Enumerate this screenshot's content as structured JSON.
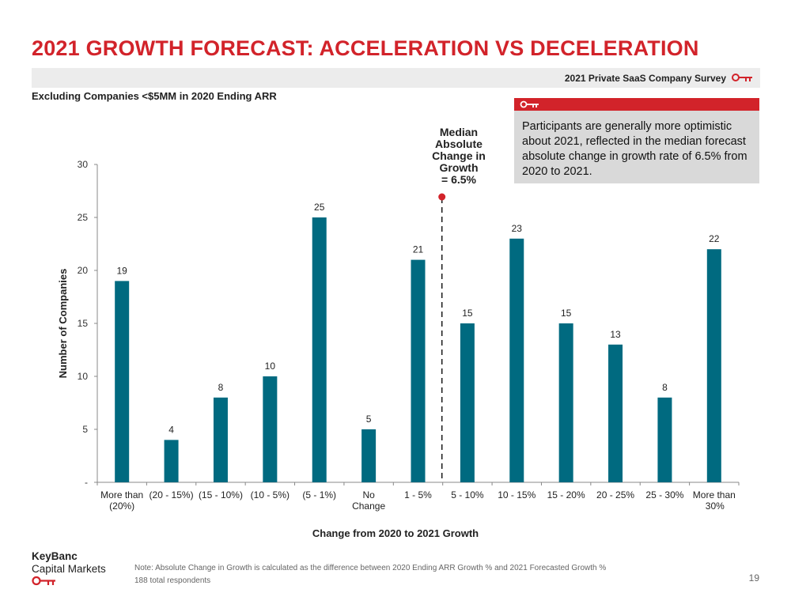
{
  "header": {
    "title": "2021 GROWTH FORECAST: ACCELERATION VS DECELERATION",
    "survey_label": "2021 Private SaaS Company Survey",
    "subtitle": "Excluding Companies <$5MM in 2020 Ending ARR"
  },
  "callout": {
    "text": "Participants are generally more optimistic about 2021, reflected in the median forecast absolute change in growth rate of 6.5% from 2020 to 2021."
  },
  "median": {
    "label_lines": [
      "Median",
      "Absolute",
      "Change in",
      "Growth",
      "= 6.5%"
    ]
  },
  "chart_data": {
    "type": "bar",
    "categories": [
      [
        "More than",
        "(20%)"
      ],
      [
        "(20 - 15%)"
      ],
      [
        "(15 - 10%)"
      ],
      [
        "(10 - 5%)"
      ],
      [
        "(5 - 1%)"
      ],
      [
        "No",
        "Change"
      ],
      [
        "1 - 5%"
      ],
      [
        "5 - 10%"
      ],
      [
        "10 - 15%"
      ],
      [
        "15 - 20%"
      ],
      [
        "20 - 25%"
      ],
      [
        "25 - 30%"
      ],
      [
        "More than",
        "30%"
      ]
    ],
    "values": [
      19,
      4,
      8,
      10,
      25,
      5,
      21,
      15,
      23,
      15,
      13,
      8,
      22
    ],
    "ylabel": "Number of Companies",
    "xlabel": "Change from 2020 to 2021 Growth",
    "ylim": [
      0,
      30
    ],
    "yticks": [
      {
        "value": 0,
        "label": "-"
      },
      {
        "value": 5,
        "label": "5"
      },
      {
        "value": 10,
        "label": "10"
      },
      {
        "value": 15,
        "label": "15"
      },
      {
        "value": 20,
        "label": "20"
      },
      {
        "value": 25,
        "label": "25"
      },
      {
        "value": 30,
        "label": "30"
      }
    ],
    "bar_color": "#006a80",
    "median_marker_category_index": 7,
    "grid": false
  },
  "footer": {
    "logo_line1": "KeyBanc",
    "logo_line2": "Capital Markets",
    "note_line1": "Note: Absolute Change in Growth is calculated as the difference between 2020 Ending ARR Growth % and 2021 Forecasted Growth %",
    "note_line2": "188 total respondents",
    "page_number": "19"
  },
  "colors": {
    "accent_red": "#d2232a",
    "band_gray": "#ececec",
    "callout_gray": "#d9d9d9"
  }
}
